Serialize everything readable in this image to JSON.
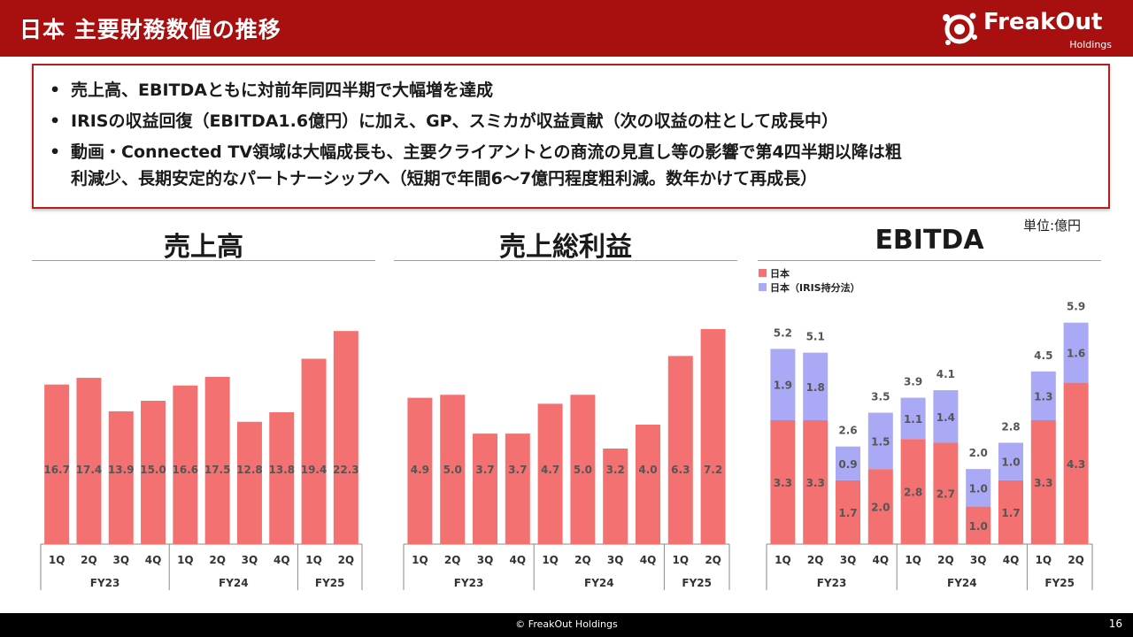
{
  "header": {
    "title": "日本 主要財務数値の推移"
  },
  "logo": {
    "name": "FreakOut",
    "sub": "Holdings"
  },
  "bullets": [
    "売上高、EBITDAともに対前年同四半期で大幅増を達成",
    "IRISの収益回復（EBITDA1.6億円）に加え、GP、スミカが収益貢献（次の収益の柱として成長中）",
    "動画・Connected TV領域は大幅成長も、主要クライアントとの商流の見直し等の影響で第4四半期以降は粗",
    "利減少、長期安定的なパートナーシップへ（短期で年間6～7億円程度粗利減。数年かけて再成長）"
  ],
  "bullet_mark": "•",
  "unit": "単位:億円",
  "colors": {
    "bar": "#f47171",
    "iris": "#a9a9f5",
    "label": "#555555",
    "header": "#a80f0f"
  },
  "chart_data": [
    {
      "type": "bar",
      "title": "売上高",
      "categories": [
        "1Q",
        "2Q",
        "3Q",
        "4Q",
        "1Q",
        "2Q",
        "3Q",
        "4Q",
        "1Q",
        "2Q"
      ],
      "groups": [
        {
          "label": "FY23",
          "count": 4
        },
        {
          "label": "FY24",
          "count": 4
        },
        {
          "label": "FY25",
          "count": 2
        }
      ],
      "series": [
        {
          "name": "",
          "values": [
            16.7,
            17.4,
            13.9,
            15.0,
            16.6,
            17.5,
            12.8,
            13.8,
            19.4,
            22.3
          ]
        }
      ],
      "ylim": [
        0,
        25
      ]
    },
    {
      "type": "bar",
      "title": "売上総利益",
      "categories": [
        "1Q",
        "2Q",
        "3Q",
        "4Q",
        "1Q",
        "2Q",
        "3Q",
        "4Q",
        "1Q",
        "2Q"
      ],
      "groups": [
        {
          "label": "FY23",
          "count": 4
        },
        {
          "label": "FY24",
          "count": 4
        },
        {
          "label": "FY25",
          "count": 2
        }
      ],
      "series": [
        {
          "name": "",
          "values": [
            4.9,
            5.0,
            3.7,
            3.7,
            4.7,
            5.0,
            3.2,
            4.0,
            6.3,
            7.2
          ]
        }
      ],
      "ylim": [
        0,
        8
      ]
    },
    {
      "type": "bar",
      "stacked": true,
      "title": "EBITDA",
      "categories": [
        "1Q",
        "2Q",
        "3Q",
        "4Q",
        "1Q",
        "2Q",
        "3Q",
        "4Q",
        "1Q",
        "2Q"
      ],
      "groups": [
        {
          "label": "FY23",
          "count": 4
        },
        {
          "label": "FY24",
          "count": 4
        },
        {
          "label": "FY25",
          "count": 2
        }
      ],
      "series": [
        {
          "name": "日本",
          "values": [
            3.3,
            3.3,
            1.7,
            2.0,
            2.8,
            2.7,
            1.0,
            1.7,
            3.3,
            4.3
          ]
        },
        {
          "name": "日本（IRIS持分法）",
          "values": [
            1.9,
            1.8,
            0.9,
            1.5,
            1.1,
            1.4,
            1.0,
            1.0,
            1.3,
            1.6
          ]
        }
      ],
      "totals": [
        5.2,
        5.1,
        2.6,
        3.5,
        3.9,
        4.1,
        2.0,
        2.8,
        4.5,
        5.9
      ],
      "ylim": [
        0,
        6.6
      ]
    }
  ],
  "footer": {
    "copyright": "© FreakOut Holdings",
    "page": "16"
  }
}
